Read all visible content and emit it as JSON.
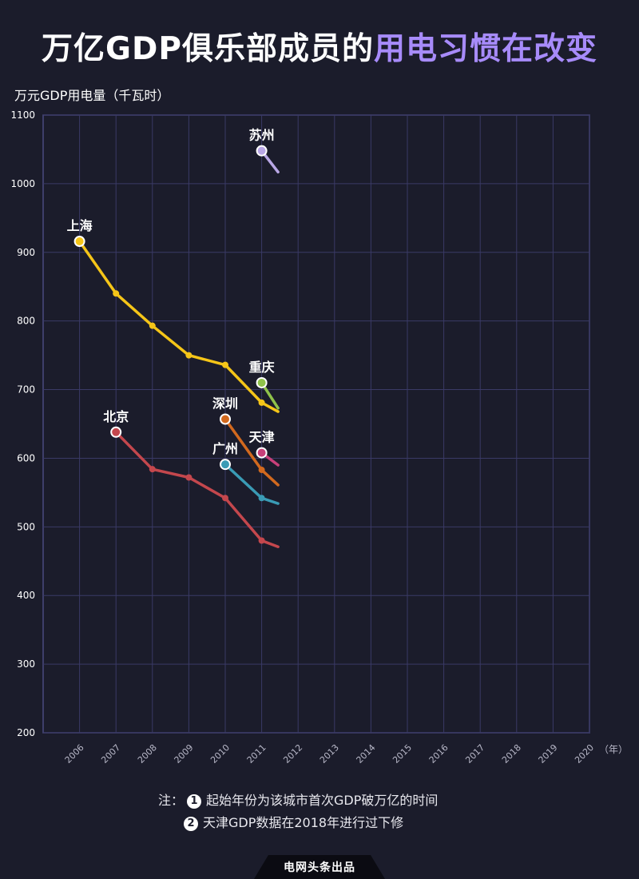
{
  "title": {
    "part1": "万亿GDP俱乐部成员的",
    "part2": "用电习惯在改变"
  },
  "colors": {
    "background": "#1b1c2b",
    "grid": "#3a3a66",
    "axis": "#4a4a80",
    "highlight": "#a78bfa"
  },
  "chart_data": {
    "type": "line",
    "ylabel": "万元GDP用电量（千瓦时）",
    "x_unit": "（年）",
    "xlim": [
      2005,
      2020
    ],
    "ylim": [
      200,
      1100
    ],
    "yticks": [
      200,
      300,
      400,
      500,
      600,
      700,
      800,
      900,
      1000,
      1100
    ],
    "xticks": [
      2006,
      2007,
      2008,
      2009,
      2010,
      2011,
      2012,
      2013,
      2014,
      2015,
      2016,
      2017,
      2018,
      2019,
      2020
    ],
    "grid": true,
    "series": [
      {
        "name": "上海",
        "color": "#f5c518",
        "x": [
          2006,
          2007,
          2008,
          2009,
          2010,
          2011,
          2011.45
        ],
        "y": [
          916,
          840,
          793,
          750,
          736,
          681,
          668
        ]
      },
      {
        "name": "北京",
        "color": "#c4474d",
        "x": [
          2007,
          2008,
          2009,
          2010,
          2011,
          2011.45
        ],
        "y": [
          638,
          584,
          572,
          542,
          480,
          471
        ]
      },
      {
        "name": "深圳",
        "color": "#d2691e",
        "x": [
          2010,
          2011,
          2011.45
        ],
        "y": [
          657,
          583,
          561
        ]
      },
      {
        "name": "广州",
        "color": "#3a9bb5",
        "x": [
          2010,
          2011,
          2011.45
        ],
        "y": [
          591,
          542,
          534
        ]
      },
      {
        "name": "苏州",
        "color": "#b9a7e6",
        "x": [
          2011,
          2011.45
        ],
        "y": [
          1048,
          1017
        ]
      },
      {
        "name": "重庆",
        "color": "#8fc24a",
        "x": [
          2011,
          2011.45
        ],
        "y": [
          710,
          673
        ]
      },
      {
        "name": "天津",
        "color": "#c8407a",
        "x": [
          2011,
          2011.45
        ],
        "y": [
          608,
          590
        ]
      }
    ]
  },
  "notes": {
    "prefix": "注：",
    "badge1": "1",
    "line1": "起始年份为该城市首次GDP破万亿的时间",
    "badge2": "2",
    "line2": "天津GDP数据在2018年进行过下修"
  },
  "footer": {
    "text": "电网头条出品"
  }
}
